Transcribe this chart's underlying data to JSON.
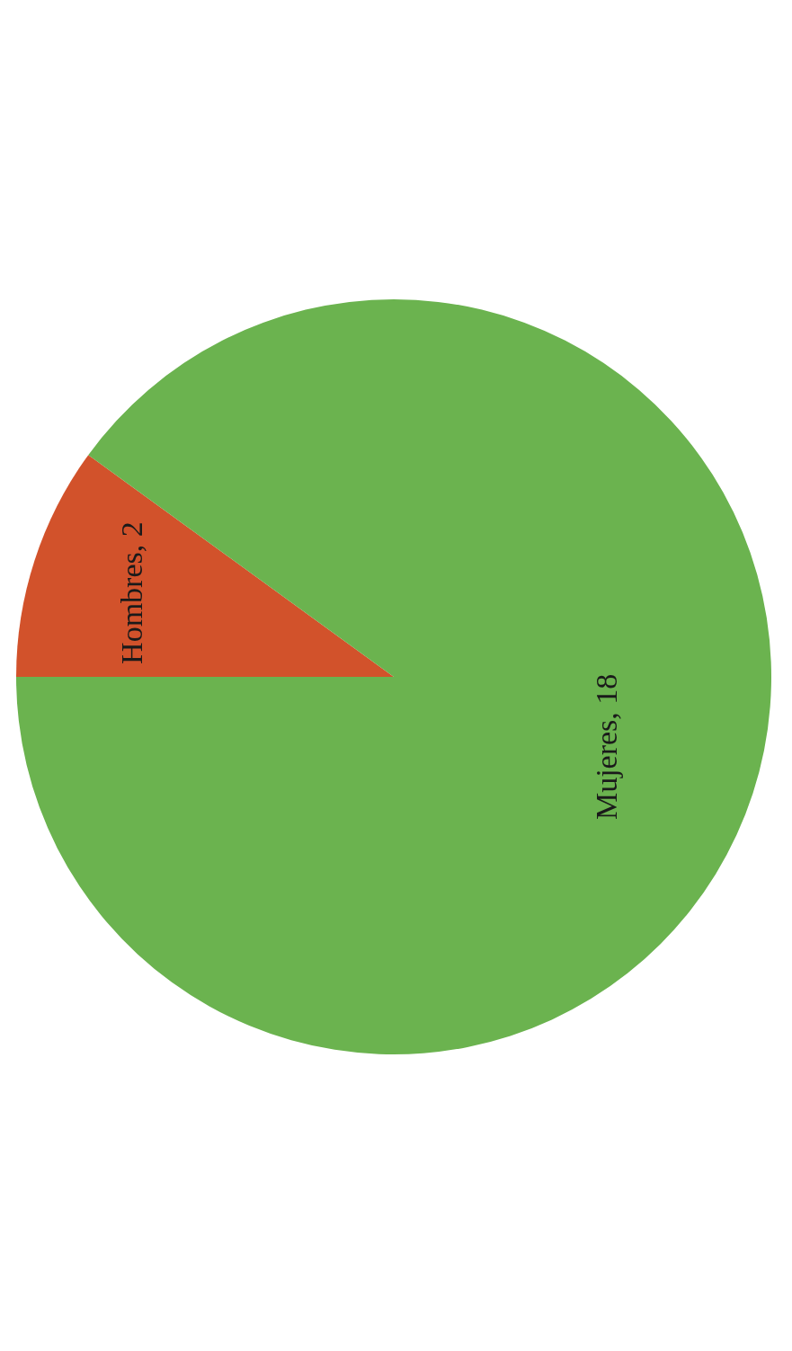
{
  "chart_data": {
    "type": "pie",
    "categories": [
      "Hombres",
      "Mujeres"
    ],
    "values": [
      2,
      18
    ],
    "colors": [
      "#d2522b",
      "#6bb34f"
    ],
    "value_labels": [
      ", 2",
      ", 18"
    ]
  }
}
